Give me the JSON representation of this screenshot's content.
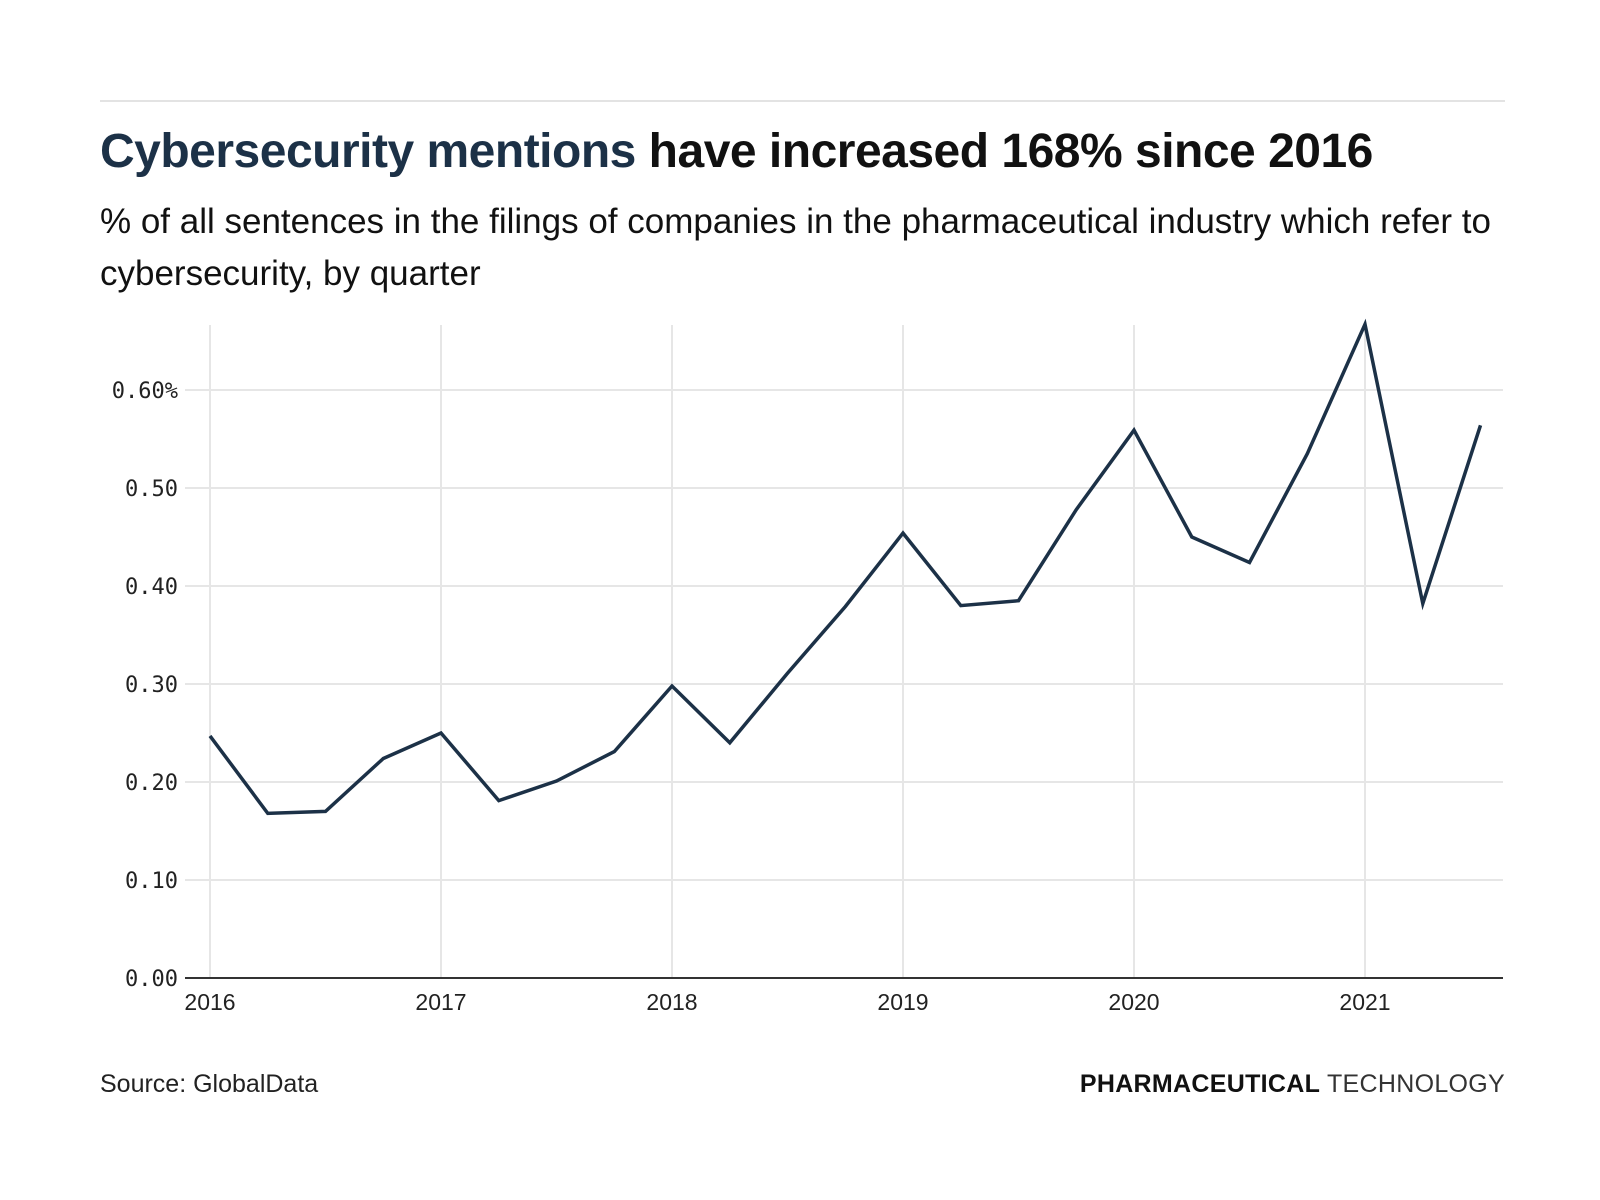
{
  "header": {
    "title_highlight": "Cybersecurity mentions",
    "title_rest": " have increased 168% since 2016",
    "subtitle": "% of all sentences in the filings of companies in the pharmaceutical industry which refer to cybersecurity, by quarter"
  },
  "footer": {
    "source": "Source: GlobalData",
    "logo_bold": "PHARMACEUTICAL",
    "logo_light": " TECHNOLOGY"
  },
  "colors": {
    "line": "#1c3147",
    "grid": "#e6e6e6",
    "axis": "#333333",
    "title_highlight": "#1c3147"
  },
  "chart_data": {
    "type": "line",
    "title": "Cybersecurity mentions have increased 168% since 2016",
    "subtitle": "% of all sentences in the filings of companies in the pharmaceutical industry which refer to cybersecurity, by quarter",
    "xlabel": "",
    "ylabel": "",
    "grid": true,
    "legend": "none",
    "ylim": [
      0,
      0.67
    ],
    "xlim": [
      2016.0,
      2021.5
    ],
    "yticks": [
      0.0,
      0.1,
      0.2,
      0.3,
      0.4,
      0.5,
      0.6
    ],
    "ytick_labels": [
      "0.00",
      "0.10",
      "0.20",
      "0.30",
      "0.40",
      "0.50",
      "0.60%"
    ],
    "xticks": [
      2016,
      2017,
      2018,
      2019,
      2020,
      2021
    ],
    "xtick_labels": [
      "2016",
      "2017",
      "2018",
      "2019",
      "2020",
      "2021"
    ],
    "x": [
      "2016 Q1",
      "2016 Q2",
      "2016 Q3",
      "2016 Q4",
      "2017 Q1",
      "2017 Q2",
      "2017 Q3",
      "2017 Q4",
      "2018 Q1",
      "2018 Q2",
      "2018 Q3",
      "2018 Q4",
      "2019 Q1",
      "2019 Q2",
      "2019 Q3",
      "2019 Q4",
      "2020 Q1",
      "2020 Q2",
      "2020 Q3",
      "2020 Q4",
      "2021 Q1",
      "2021 Q2",
      "2021 Q3"
    ],
    "series": [
      {
        "name": "Cybersecurity mentions (%)",
        "values": [
          0.247,
          0.168,
          0.17,
          0.224,
          0.25,
          0.181,
          0.201,
          0.231,
          0.298,
          0.24,
          0.311,
          0.379,
          0.454,
          0.38,
          0.385,
          0.478,
          0.559,
          0.45,
          0.424,
          0.535,
          0.667,
          0.382,
          0.564
        ]
      }
    ]
  }
}
